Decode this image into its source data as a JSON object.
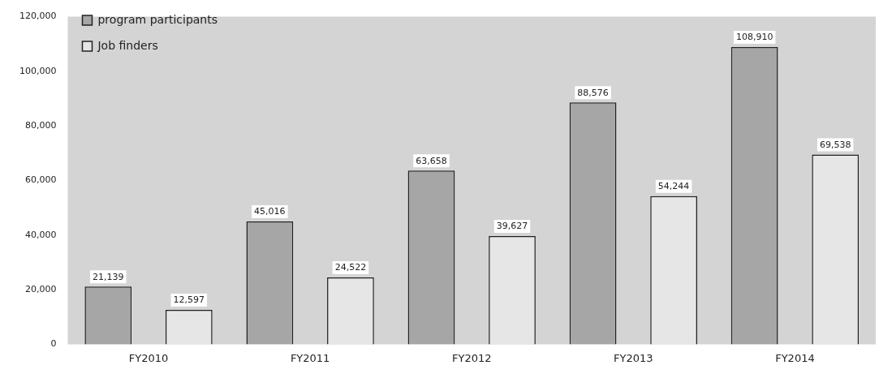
{
  "chart_data": {
    "type": "bar",
    "categories": [
      "FY2010",
      "FY2011",
      "FY2012",
      "FY2013",
      "FY2014"
    ],
    "series": [
      {
        "name": "program participants",
        "color": "#a6a6a6",
        "values": [
          21139,
          45016,
          63658,
          88576,
          108910
        ],
        "value_labels": [
          "21,139",
          "45,016",
          "63,658",
          "88,576",
          "108,910"
        ]
      },
      {
        "name": "Job finders",
        "color": "#e6e6e6",
        "values": [
          12597,
          24522,
          39627,
          54244,
          69538
        ],
        "value_labels": [
          "12,597",
          "24,522",
          "39,627",
          "54,244",
          "69,538"
        ]
      }
    ],
    "ylim": [
      0,
      120000
    ],
    "yticks": [
      {
        "value": 0,
        "label": "0"
      },
      {
        "value": 20000,
        "label": "20,000"
      },
      {
        "value": 40000,
        "label": "40,000"
      },
      {
        "value": 60000,
        "label": "60,000"
      },
      {
        "value": 80000,
        "label": "80,000"
      },
      {
        "value": 100000,
        "label": "100,000"
      },
      {
        "value": 120000,
        "label": "120,000"
      }
    ],
    "grid": false,
    "legend": "top left"
  }
}
